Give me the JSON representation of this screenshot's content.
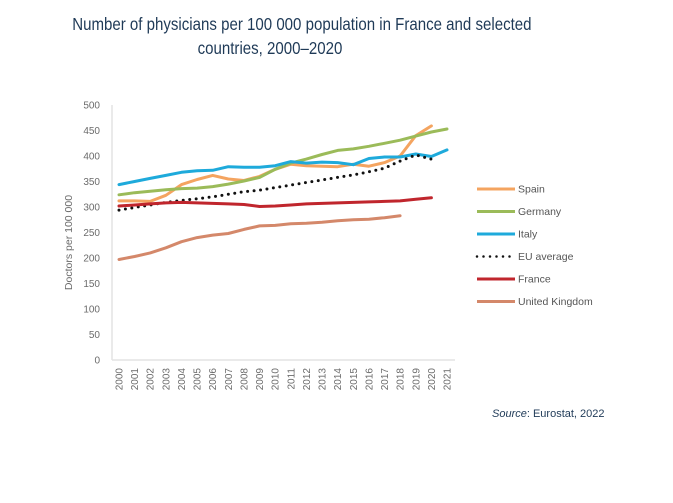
{
  "chart_data": {
    "type": "line",
    "title_lines": [
      "Number of physicians per 100 000 population in France and selected",
      "countries, 2000–2020"
    ],
    "xlabel": "",
    "ylabel": "Doctors per 100 000",
    "ylim": [
      0,
      500
    ],
    "yticks": [
      0,
      50,
      100,
      150,
      200,
      250,
      300,
      350,
      400,
      450,
      500
    ],
    "x": [
      "2000",
      "2001",
      "2002",
      "2003",
      "2004",
      "2005",
      "2006",
      "2007",
      "2008",
      "2009",
      "2010",
      "2011",
      "2012",
      "2013",
      "2014",
      "2015",
      "2016",
      "2017",
      "2018",
      "2019",
      "2020",
      "2021"
    ],
    "grid": false,
    "legend_position": "right",
    "series": [
      {
        "name": "Spain",
        "color": "#f4a460",
        "style": "solid",
        "values": [
          312,
          312,
          311,
          323,
          344,
          354,
          362,
          355,
          352,
          360,
          374,
          384,
          381,
          380,
          379,
          384,
          380,
          387,
          400,
          440,
          459,
          null
        ]
      },
      {
        "name": "Germany",
        "color": "#9bbb59",
        "style": "solid",
        "values": [
          324,
          328,
          331,
          334,
          336,
          337,
          340,
          345,
          351,
          358,
          374,
          386,
          394,
          403,
          411,
          414,
          419,
          425,
          431,
          439,
          447,
          453
        ]
      },
      {
        "name": "Italy",
        "color": "#1eaadb",
        "style": "solid",
        "values": [
          344,
          350,
          356,
          362,
          368,
          371,
          372,
          379,
          378,
          378,
          381,
          389,
          386,
          388,
          387,
          383,
          395,
          398,
          398,
          404,
          399,
          412
        ]
      },
      {
        "name": "EU average",
        "color": "#111111",
        "style": "dotted",
        "values": [
          294,
          299,
          304,
          309,
          313,
          316,
          320,
          325,
          330,
          333,
          338,
          343,
          348,
          353,
          358,
          363,
          369,
          376,
          390,
          402,
          394,
          null
        ]
      },
      {
        "name": "France",
        "color": "#c0262d",
        "style": "solid",
        "values": [
          302,
          304,
          306,
          308,
          309,
          308,
          307,
          306,
          305,
          301,
          302,
          304,
          306,
          307,
          308,
          309,
          310,
          311,
          312,
          315,
          318,
          null
        ]
      },
      {
        "name": "United Kingdom",
        "color": "#d4886a",
        "style": "solid",
        "values": [
          197,
          203,
          210,
          220,
          232,
          240,
          245,
          248,
          256,
          263,
          264,
          267,
          268,
          270,
          273,
          275,
          276,
          279,
          283,
          null,
          null,
          null
        ]
      }
    ],
    "source_label": "Source",
    "source_text": ": Eurostat, 2022"
  }
}
